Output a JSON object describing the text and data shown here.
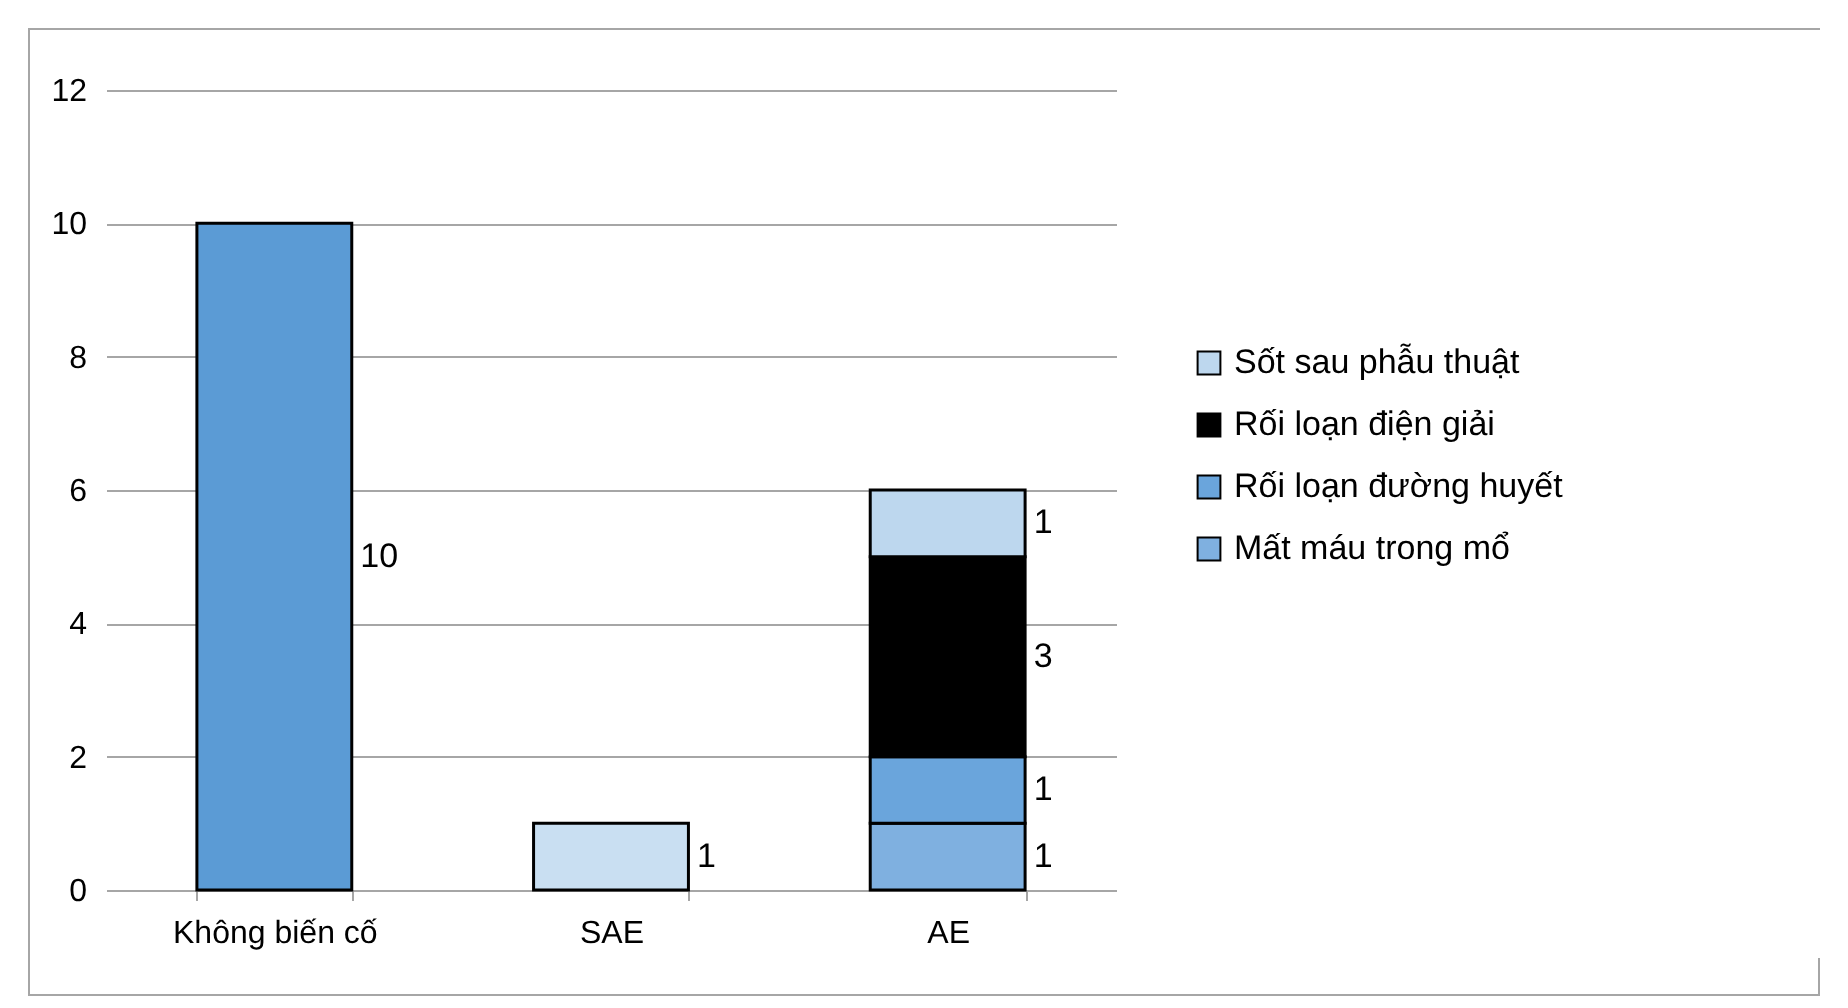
{
  "chart_data": {
    "type": "bar",
    "stacked": true,
    "categories": [
      "Không biến cố",
      "SAE",
      "AE"
    ],
    "series": [
      {
        "color": "#5b9bd5",
        "values": [
          10,
          null,
          null
        ]
      },
      {
        "color": "#c9dff2",
        "values": [
          null,
          1,
          null
        ]
      },
      {
        "name": "Mất máu trong mổ",
        "color": "#7fb0e0",
        "values": [
          null,
          null,
          1
        ]
      },
      {
        "name": "Rối loạn đường huyết",
        "color": "#6aa5dc",
        "values": [
          null,
          null,
          1
        ]
      },
      {
        "name": "Rối loạn điện giải",
        "color": "#000000",
        "values": [
          null,
          null,
          3
        ]
      },
      {
        "name": "Sốt sau phẫu thuật",
        "color": "#bdd7ee",
        "values": [
          null,
          null,
          1
        ]
      }
    ],
    "ylim": [
      0,
      12
    ],
    "yticks": [
      0,
      2,
      4,
      6,
      8,
      10,
      12
    ],
    "grid": "y",
    "legend": "right",
    "data_labels": true
  }
}
